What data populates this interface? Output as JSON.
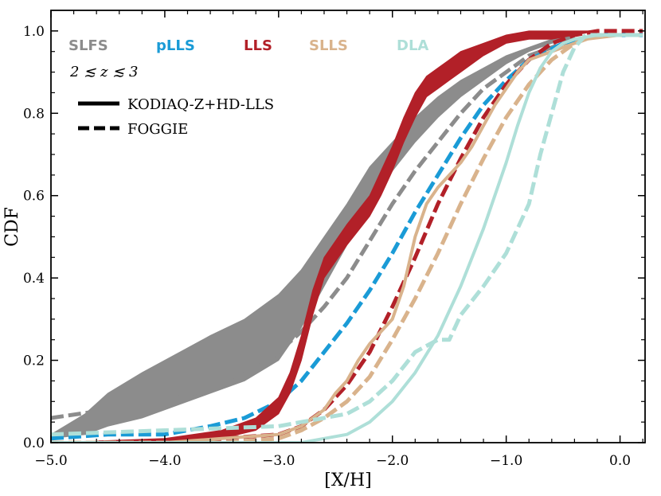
{
  "chart_data": {
    "type": "line",
    "title": "",
    "xlabel": "[X/H]",
    "ylabel": "CDF",
    "xlim": [
      -5.0,
      0.22
    ],
    "ylim": [
      0.0,
      1.05
    ],
    "xticks": [
      -5.0,
      -4.0,
      -3.0,
      -2.0,
      -1.0,
      0.0
    ],
    "xtick_labels": [
      "−5.0",
      "−4.0",
      "−3.0",
      "−2.0",
      "−1.0",
      "0.0"
    ],
    "yticks": [
      0.0,
      0.2,
      0.4,
      0.6,
      0.8,
      1.0
    ],
    "ytick_labels": [
      "0.0",
      "0.2",
      "0.4",
      "0.6",
      "0.8",
      "1.0"
    ],
    "redshift_label": "2 ≲ z ≲ 3",
    "legend": {
      "placement": "top-left",
      "entries": [
        {
          "label": "KODIAQ-Z+HD-LLS",
          "style": "solid"
        },
        {
          "label": "FOGGIE",
          "style": "dashed"
        }
      ]
    },
    "series": [
      {
        "name": "SLFS",
        "color": "#8c8c8c",
        "kodiaq_band": {
          "x": [
            -5.0,
            -4.7,
            -4.5,
            -4.2,
            -4.0,
            -3.8,
            -3.6,
            -3.3,
            -3.0,
            -2.8,
            -2.6,
            -2.4,
            -2.2,
            -2.0,
            -1.8,
            -1.6,
            -1.4,
            -1.2,
            -1.0,
            -0.8,
            -0.6,
            -0.4
          ],
          "lower": [
            0.01,
            0.02,
            0.04,
            0.06,
            0.08,
            0.1,
            0.12,
            0.15,
            0.2,
            0.28,
            0.38,
            0.48,
            0.58,
            0.66,
            0.73,
            0.79,
            0.84,
            0.88,
            0.92,
            0.95,
            0.97,
            0.98
          ],
          "upper": [
            0.02,
            0.07,
            0.12,
            0.17,
            0.2,
            0.23,
            0.26,
            0.3,
            0.36,
            0.42,
            0.5,
            0.58,
            0.67,
            0.73,
            0.79,
            0.84,
            0.88,
            0.91,
            0.94,
            0.96,
            0.98,
            0.99
          ]
        },
        "foggie": {
          "x": [
            -5.0,
            -4.5,
            -4.0,
            -3.5,
            -3.2,
            -3.0,
            -2.8,
            -2.6,
            -2.4,
            -2.2,
            -2.0,
            -1.8,
            -1.6,
            -1.4,
            -1.2,
            -1.0,
            -0.8,
            -0.5,
            -0.2,
            0.2
          ],
          "y": [
            0.06,
            0.08,
            0.1,
            0.14,
            0.18,
            0.22,
            0.27,
            0.33,
            0.4,
            0.49,
            0.58,
            0.66,
            0.73,
            0.8,
            0.86,
            0.9,
            0.94,
            0.97,
            0.99,
            0.99
          ]
        }
      },
      {
        "name": "pLLS",
        "color": "#1a9bd6",
        "foggie": {
          "x": [
            -5.0,
            -4.5,
            -4.0,
            -3.6,
            -3.3,
            -3.0,
            -2.8,
            -2.6,
            -2.4,
            -2.2,
            -2.0,
            -1.8,
            -1.6,
            -1.4,
            -1.2,
            -1.0,
            -0.8,
            -0.5,
            -0.2,
            0.2
          ],
          "y": [
            0.01,
            0.02,
            0.02,
            0.04,
            0.06,
            0.1,
            0.15,
            0.22,
            0.29,
            0.37,
            0.46,
            0.56,
            0.65,
            0.74,
            0.82,
            0.88,
            0.93,
            0.97,
            0.99,
            0.99
          ]
        }
      },
      {
        "name": "LLS",
        "color": "#b22028",
        "kodiaq_band": {
          "x": [
            -5.0,
            -4.0,
            -3.5,
            -3.2,
            -3.0,
            -2.9,
            -2.8,
            -2.7,
            -2.6,
            -2.4,
            -2.2,
            -2.1,
            -2.0,
            -1.9,
            -1.8,
            -1.7,
            -1.6,
            -1.5,
            -1.4,
            -1.2,
            -1.0,
            -0.8,
            -0.6,
            -0.4,
            -0.2
          ],
          "lower": [
            0.0,
            0.0,
            0.01,
            0.03,
            0.07,
            0.12,
            0.2,
            0.31,
            0.4,
            0.48,
            0.55,
            0.6,
            0.66,
            0.73,
            0.79,
            0.84,
            0.86,
            0.88,
            0.9,
            0.94,
            0.97,
            0.98,
            0.98,
            0.99,
            1.0
          ],
          "upper": [
            0.0,
            0.01,
            0.03,
            0.06,
            0.11,
            0.17,
            0.26,
            0.37,
            0.45,
            0.53,
            0.6,
            0.66,
            0.72,
            0.79,
            0.85,
            0.89,
            0.91,
            0.93,
            0.95,
            0.97,
            0.99,
            1.0,
            1.0,
            1.0,
            1.0
          ]
        },
        "foggie": {
          "x": [
            -5.0,
            -4.0,
            -3.5,
            -3.0,
            -2.8,
            -2.6,
            -2.4,
            -2.2,
            -2.0,
            -1.8,
            -1.6,
            -1.4,
            -1.2,
            -1.0,
            -0.8,
            -0.6,
            -0.4,
            -0.2,
            0.2
          ],
          "y": [
            0.0,
            0.0,
            0.01,
            0.02,
            0.04,
            0.08,
            0.14,
            0.22,
            0.33,
            0.45,
            0.58,
            0.69,
            0.79,
            0.87,
            0.93,
            0.97,
            0.99,
            1.0,
            1.0
          ]
        }
      },
      {
        "name": "SLLS",
        "color": "#d9b38c",
        "kodiaq": {
          "x": [
            -5.0,
            -4.0,
            -3.5,
            -3.0,
            -2.8,
            -2.6,
            -2.5,
            -2.4,
            -2.3,
            -2.2,
            -2.0,
            -1.9,
            -1.8,
            -1.7,
            -1.6,
            -1.5,
            -1.4,
            -1.3,
            -1.2,
            -1.1,
            -1.0,
            -0.9,
            -0.8,
            -0.7,
            -0.6,
            -0.5,
            -0.3,
            0.0,
            0.2
          ],
          "y": [
            0.0,
            0.0,
            0.01,
            0.02,
            0.04,
            0.08,
            0.12,
            0.15,
            0.2,
            0.24,
            0.3,
            0.38,
            0.5,
            0.58,
            0.62,
            0.65,
            0.68,
            0.72,
            0.77,
            0.82,
            0.86,
            0.9,
            0.93,
            0.94,
            0.95,
            0.96,
            0.98,
            0.99,
            0.99
          ]
        },
        "foggie": {
          "x": [
            -5.0,
            -4.0,
            -3.5,
            -3.0,
            -2.8,
            -2.6,
            -2.4,
            -2.2,
            -2.0,
            -1.8,
            -1.6,
            -1.4,
            -1.2,
            -1.0,
            -0.8,
            -0.6,
            -0.4,
            -0.2,
            0.2
          ],
          "y": [
            0.0,
            0.0,
            0.0,
            0.01,
            0.03,
            0.06,
            0.1,
            0.16,
            0.25,
            0.35,
            0.46,
            0.58,
            0.69,
            0.79,
            0.87,
            0.93,
            0.97,
            0.99,
            0.99
          ]
        }
      },
      {
        "name": "DLA",
        "color": "#aedfd8",
        "kodiaq": {
          "x": [
            -5.0,
            -4.0,
            -3.0,
            -2.8,
            -2.6,
            -2.4,
            -2.2,
            -2.0,
            -1.8,
            -1.6,
            -1.4,
            -1.2,
            -1.0,
            -0.9,
            -0.8,
            -0.7,
            -0.6,
            -0.5,
            -0.4,
            -0.2,
            0.0,
            0.2
          ],
          "y": [
            0.0,
            0.0,
            0.0,
            0.0,
            0.01,
            0.02,
            0.05,
            0.1,
            0.17,
            0.26,
            0.38,
            0.52,
            0.68,
            0.77,
            0.85,
            0.91,
            0.95,
            0.97,
            0.98,
            0.99,
            0.99,
            0.99
          ]
        },
        "foggie": {
          "x": [
            -5.0,
            -4.0,
            -3.0,
            -2.8,
            -2.6,
            -2.4,
            -2.2,
            -2.0,
            -1.8,
            -1.6,
            -1.5,
            -1.4,
            -1.2,
            -1.0,
            -0.8,
            -0.7,
            -0.6,
            -0.5,
            -0.4,
            -0.3,
            0.0,
            0.2
          ],
          "y": [
            0.02,
            0.03,
            0.04,
            0.05,
            0.06,
            0.07,
            0.1,
            0.15,
            0.22,
            0.25,
            0.25,
            0.31,
            0.38,
            0.46,
            0.58,
            0.7,
            0.8,
            0.9,
            0.96,
            0.99,
            0.99,
            0.99
          ]
        }
      }
    ]
  }
}
